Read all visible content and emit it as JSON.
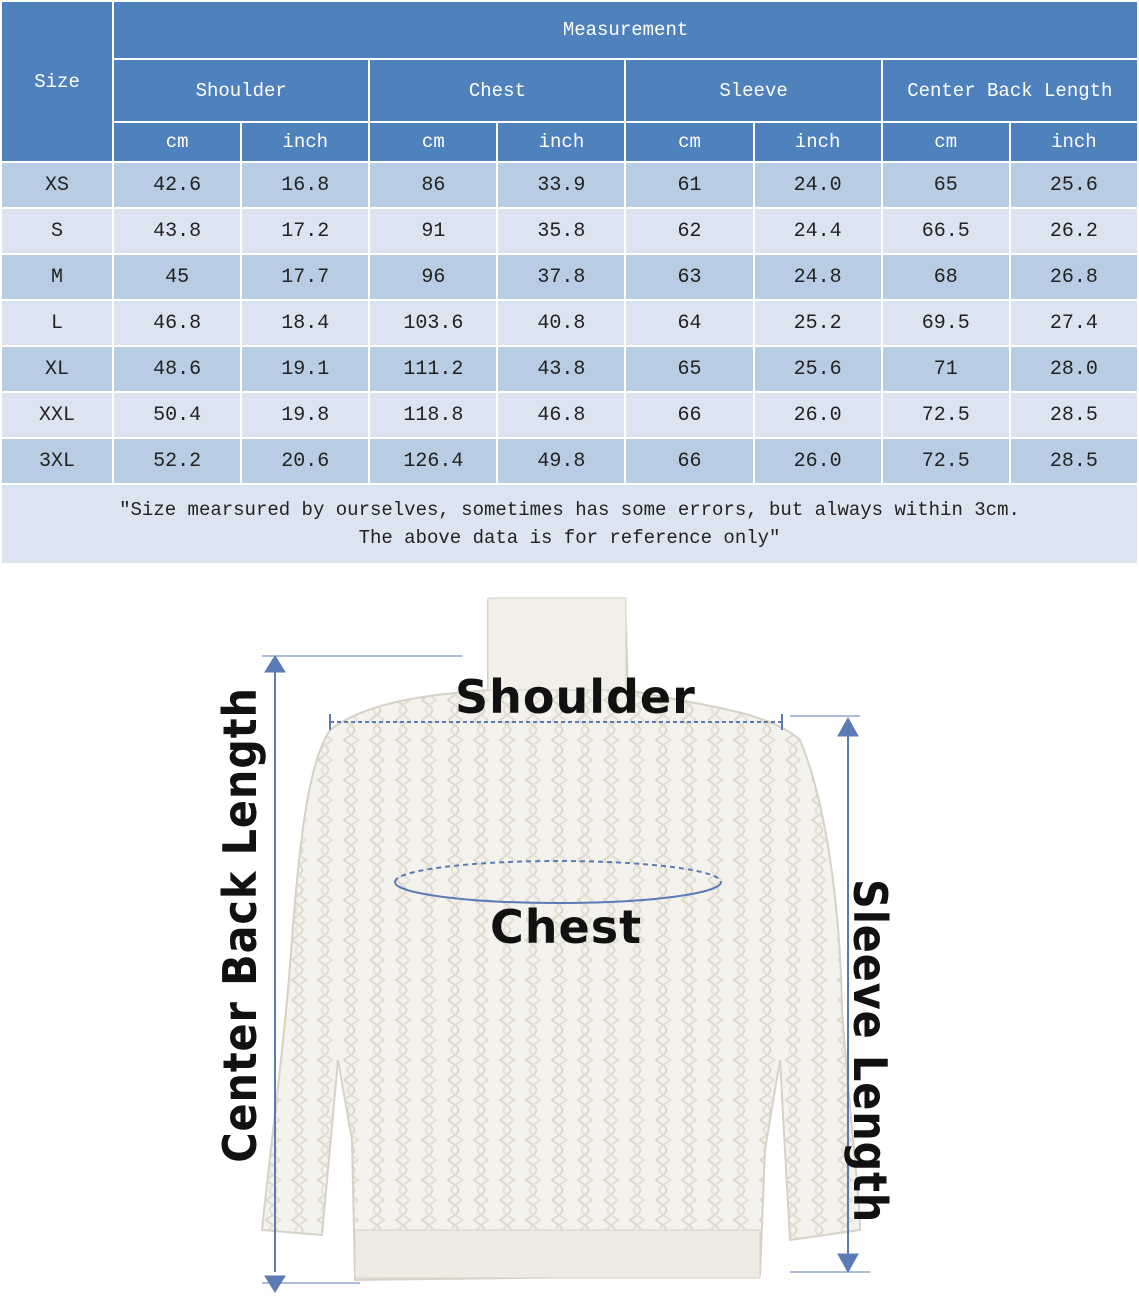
{
  "table": {
    "size_header": "Size",
    "measurement_header": "Measurement",
    "groups": [
      "Shoulder",
      "Chest",
      "Sleeve",
      "Center Back Length"
    ],
    "units": [
      "cm",
      "inch",
      "cm",
      "inch",
      "cm",
      "inch",
      "cm",
      "inch"
    ],
    "rows": [
      [
        "XS",
        "42.6",
        "16.8",
        "86",
        "33.9",
        "61",
        "24.0",
        "65",
        "25.6"
      ],
      [
        "S",
        "43.8",
        "17.2",
        "91",
        "35.8",
        "62",
        "24.4",
        "66.5",
        "26.2"
      ],
      [
        "M",
        "45",
        "17.7",
        "96",
        "37.8",
        "63",
        "24.8",
        "68",
        "26.8"
      ],
      [
        "L",
        "46.8",
        "18.4",
        "103.6",
        "40.8",
        "64",
        "25.2",
        "69.5",
        "27.4"
      ],
      [
        "XL",
        "48.6",
        "19.1",
        "111.2",
        "43.8",
        "65",
        "25.6",
        "71",
        "28.0"
      ],
      [
        "XXL",
        "50.4",
        "19.8",
        "118.8",
        "46.8",
        "66",
        "26.0",
        "72.5",
        "28.5"
      ],
      [
        "3XL",
        "52.2",
        "20.6",
        "126.4",
        "49.8",
        "66",
        "26.0",
        "72.5",
        "28.5"
      ]
    ],
    "note_line1": "\"Size mearsured by ourselves, sometimes has some errors, but always within 3cm.",
    "note_line2": "The above data is for reference only\""
  },
  "diagram": {
    "shoulder_label": "Shoulder",
    "chest_label": "Chest",
    "center_back_label": "Center Back Length",
    "sleeve_label": "Sleeve Length"
  },
  "colors": {
    "header": "#4f81bd",
    "row_dark": "#b8cce4",
    "row_light": "#dbe5f1",
    "arrow": "#5b7bb5",
    "sweater": "#f4f2ec"
  }
}
